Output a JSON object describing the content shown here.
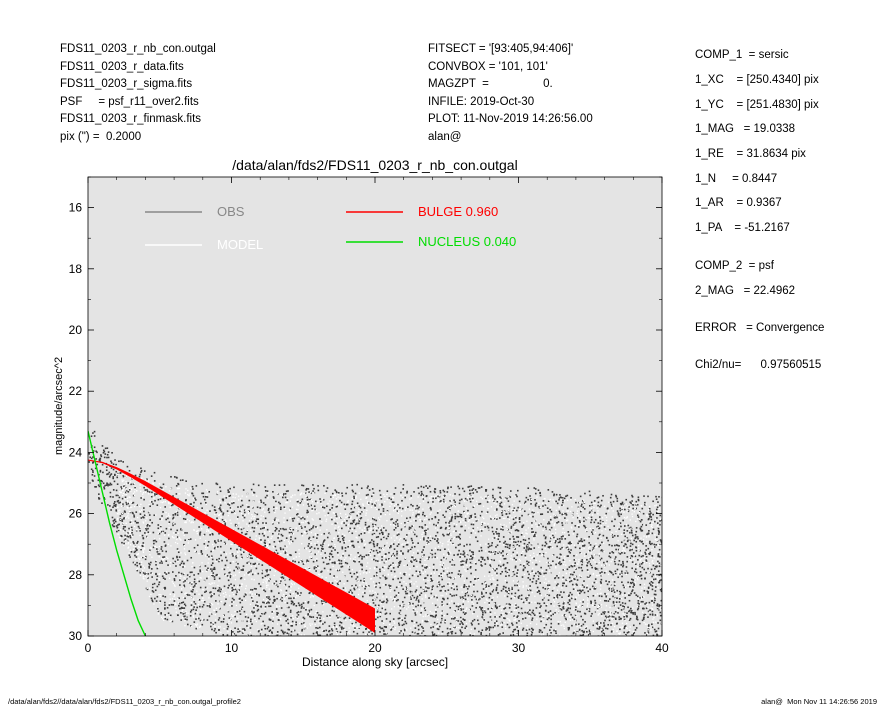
{
  "header_left": [
    "FDS11_0203_r_nb_con.outgal",
    "FDS11_0203_r_data.fits",
    "FDS11_0203_r_sigma.fits",
    "PSF     = psf_r11_over2.fits",
    "FDS11_0203_r_finmask.fits",
    "pix (\") =  0.2000"
  ],
  "header_mid": [
    "FITSECT = '[93:405,94:406]'",
    "CONVBOX = '101, 101'",
    "MAGZPT  =                 0.",
    "INFILE: 2019-Oct-30",
    "PLOT: 11-Nov-2019 14:26:56.00",
    "alan@"
  ],
  "params": [
    "COMP_1  = sersic",
    "1_XC    = [250.4340] pix",
    "1_YC    = [251.4830] pix",
    "1_MAG   = 19.0338",
    "1_RE    = 31.8634 pix",
    "1_N     = 0.8447",
    "1_AR    = 0.9367",
    "1_PA    = -51.2167",
    "COMP_2  = psf",
    "2_MAG   = 22.4962",
    "ERROR   = Convergence",
    "Chi2/nu=      0.97560515"
  ],
  "footer_left": "/data/alan/fds2//data/alan/fds2/FDS11_0203_r_nb_con.outgal_profile2",
  "footer_right": "alan@  Mon Nov 11 14:26:56 2019",
  "chart_data": {
    "type": "scatter",
    "title": "/data/alan/fds2/FDS11_0203_r_nb_con.outgal",
    "xlabel": "Distance along sky [arcsec]",
    "ylabel": "magnitude/arcsec^2",
    "xlim": [
      0,
      40
    ],
    "ylim": [
      30,
      15
    ],
    "y_inverted": true,
    "x_ticks": [
      0,
      10,
      20,
      30,
      40
    ],
    "y_ticks": [
      16,
      18,
      20,
      22,
      24,
      26,
      28,
      30
    ],
    "background_color": "#e4e4e4",
    "legend": [
      {
        "label": "OBS",
        "color": "#888888",
        "text": "OBS"
      },
      {
        "label": "MODEL",
        "color": "#ffffff",
        "text": "MODEL"
      },
      {
        "label": "BULGE",
        "color": "#ff0000",
        "text": "BULGE  0.960"
      },
      {
        "label": "NUCLEUS",
        "color": "#00dd00",
        "text": "NUCLEUS  0.040"
      }
    ],
    "series": [
      {
        "label": "BULGE",
        "color": "#ff0000",
        "x": [
          0,
          1,
          2,
          3,
          4,
          5,
          6,
          7,
          8,
          9,
          10,
          11,
          12,
          13,
          14,
          15,
          16,
          17,
          18,
          19,
          20
        ],
        "y": [
          24.25,
          24.33,
          24.52,
          24.76,
          25.02,
          25.3,
          25.58,
          25.86,
          26.14,
          26.42,
          26.7,
          26.98,
          27.26,
          27.54,
          27.82,
          28.1,
          28.38,
          28.66,
          28.94,
          29.22,
          29.5
        ],
        "band_halfwidth_max": 0.4
      },
      {
        "label": "NUCLEUS",
        "color": "#00dd00",
        "x": [
          0,
          0.5,
          1,
          1.5,
          2,
          2.5,
          3,
          3.5,
          4
        ],
        "y": [
          23.3,
          24.3,
          25.3,
          26.3,
          27.2,
          28.0,
          28.8,
          29.5,
          30.0
        ]
      },
      {
        "label": "OBS",
        "color": "#444444",
        "description_points": "scatter envelope",
        "envelope_top": [
          [
            0,
            23.0
          ],
          [
            2,
            24.2
          ],
          [
            5,
            24.7
          ],
          [
            10,
            25.0
          ],
          [
            20,
            25.0
          ],
          [
            30,
            25.1
          ],
          [
            40,
            25.4
          ]
        ],
        "envelope_bottom": [
          [
            0,
            25.0
          ],
          [
            3,
            27.5
          ],
          [
            5,
            29.5
          ],
          [
            10,
            30.0
          ],
          [
            40,
            30.0
          ]
        ]
      }
    ]
  }
}
